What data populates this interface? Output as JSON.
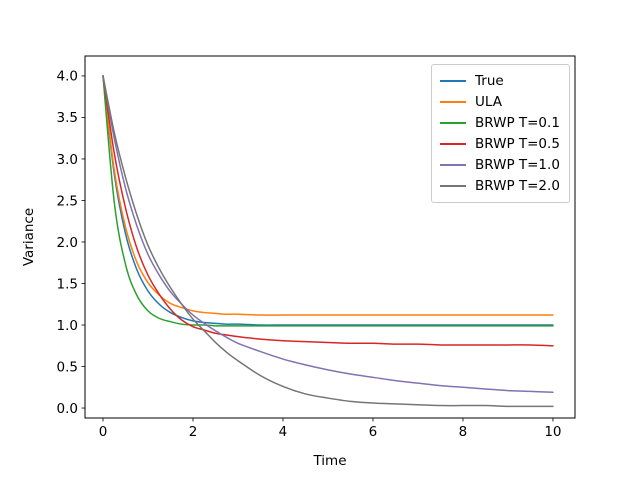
{
  "chart_data": {
    "type": "line",
    "title": "",
    "xlabel": "Time",
    "ylabel": "Variance",
    "xlim": [
      -0.4,
      10.49
    ],
    "ylim": [
      -0.12,
      4.24
    ],
    "xticks": [
      0,
      2,
      4,
      6,
      8,
      10
    ],
    "xtick_labels": [
      "0",
      "2",
      "4",
      "6",
      "8",
      "10"
    ],
    "yticks": [
      0.0,
      0.5,
      1.0,
      1.5,
      2.0,
      2.5,
      3.0,
      3.5,
      4.0
    ],
    "ytick_labels": [
      "0.0",
      "0.5",
      "1.0",
      "1.5",
      "2.0",
      "2.5",
      "3.0",
      "3.5",
      "4.0"
    ],
    "grid": false,
    "legend_position": "upper right",
    "x": [
      0,
      0.25,
      0.5,
      0.75,
      1,
      1.25,
      1.5,
      1.75,
      2,
      2.25,
      2.5,
      2.75,
      3,
      3.5,
      4,
      4.5,
      5,
      5.5,
      6,
      6.5,
      7,
      7.5,
      8,
      8.5,
      9,
      9.5,
      10
    ],
    "series": [
      {
        "name": "True",
        "color": "#1f77b4",
        "values": [
          4,
          2.82,
          2.1,
          1.67,
          1.41,
          1.25,
          1.15,
          1.09,
          1.05,
          1.03,
          1.02,
          1.01,
          1.01,
          1,
          1,
          1,
          1,
          1,
          1,
          1,
          1,
          1,
          1,
          1,
          1,
          1,
          1
        ]
      },
      {
        "name": "ULA",
        "color": "#ff7f0e",
        "values": [
          4,
          2.87,
          2.18,
          1.76,
          1.51,
          1.36,
          1.26,
          1.21,
          1.17,
          1.15,
          1.14,
          1.13,
          1.13,
          1.12,
          1.12,
          1.12,
          1.12,
          1.12,
          1.12,
          1.12,
          1.12,
          1.12,
          1.12,
          1.12,
          1.12,
          1.12,
          1.12
        ]
      },
      {
        "name": "BRWP T=0.1",
        "color": "#2ca02c",
        "values": [
          4,
          2.48,
          1.73,
          1.36,
          1.17,
          1.08,
          1.04,
          1.01,
          1,
          1,
          0.99,
          0.99,
          0.99,
          0.99,
          0.99,
          0.99,
          0.99,
          0.99,
          0.99,
          0.99,
          0.99,
          0.99,
          0.99,
          0.99,
          0.99,
          0.99,
          0.99
        ]
      },
      {
        "name": "BRWP T=0.5",
        "color": "#d62728",
        "values": [
          4,
          3.07,
          2.41,
          1.93,
          1.6,
          1.37,
          1.19,
          1.06,
          0.98,
          0.94,
          0.9,
          0.88,
          0.86,
          0.83,
          0.81,
          0.8,
          0.79,
          0.78,
          0.78,
          0.77,
          0.77,
          0.76,
          0.76,
          0.76,
          0.76,
          0.76,
          0.75
        ]
      },
      {
        "name": "BRWP T=1.0",
        "color": "#8172b3",
        "values": [
          4,
          3.25,
          2.65,
          2.2,
          1.85,
          1.6,
          1.4,
          1.25,
          1.12,
          1.02,
          0.93,
          0.85,
          0.78,
          0.68,
          0.59,
          0.52,
          0.46,
          0.41,
          0.37,
          0.33,
          0.3,
          0.27,
          0.25,
          0.23,
          0.21,
          0.2,
          0.19
        ]
      },
      {
        "name": "BRWP T=2.0",
        "color": "#757575",
        "values": [
          4,
          3.32,
          2.78,
          2.33,
          1.96,
          1.68,
          1.45,
          1.25,
          1.07,
          0.93,
          0.79,
          0.67,
          0.57,
          0.39,
          0.26,
          0.17,
          0.12,
          0.08,
          0.06,
          0.05,
          0.04,
          0.03,
          0.03,
          0.03,
          0.02,
          0.02,
          0.02
        ]
      }
    ]
  }
}
